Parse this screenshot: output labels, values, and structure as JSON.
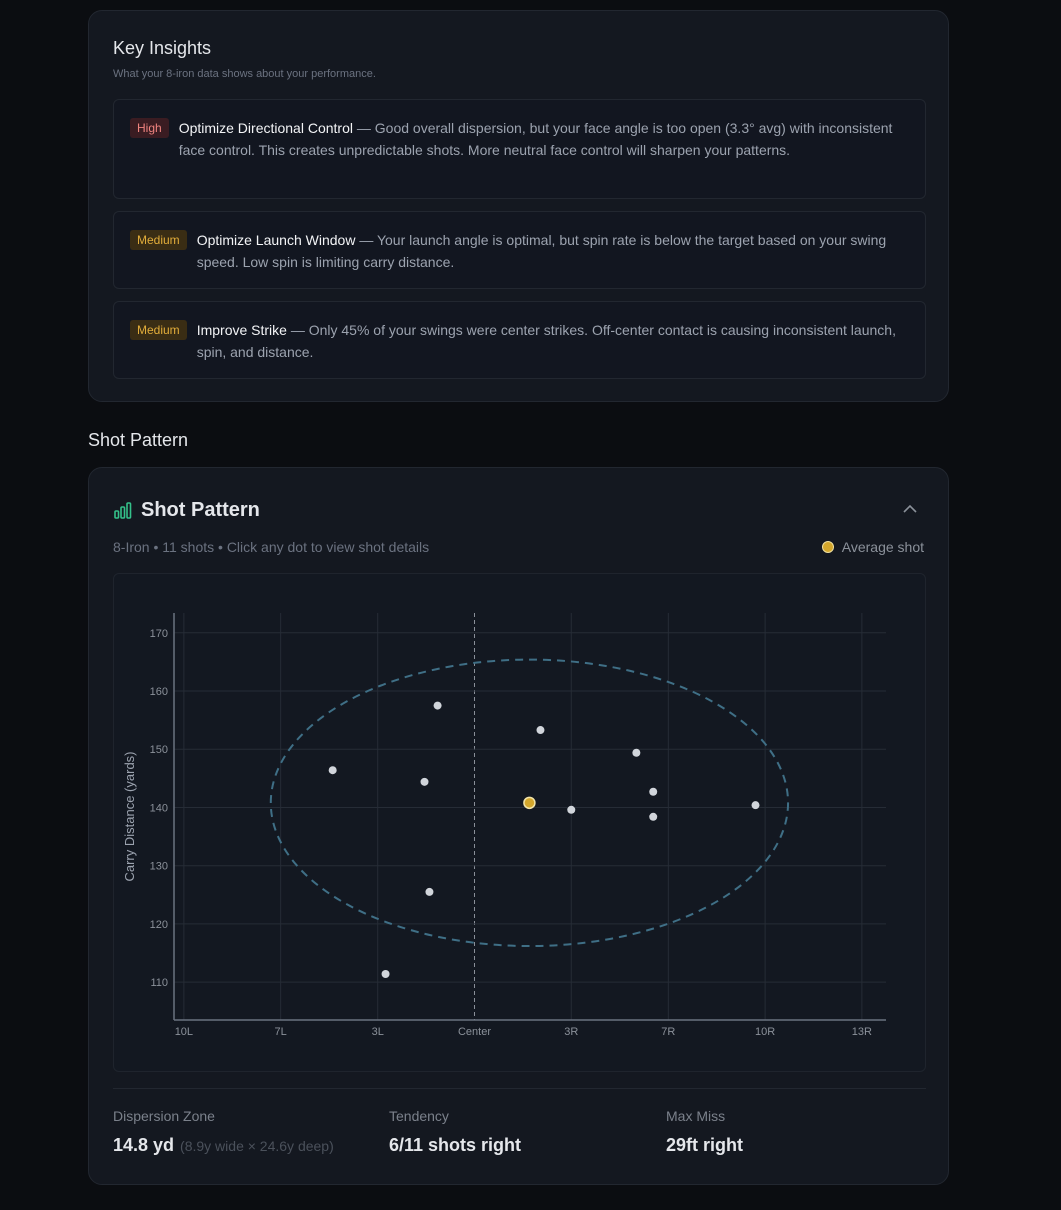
{
  "insights": {
    "title": "Key Insights",
    "subtitle": "What your 8-iron data shows about your performance.",
    "items": [
      {
        "priority": "High",
        "title": "Optimize Directional Control",
        "description": "— Good overall dispersion, but your face angle is too open (3.3° avg) with inconsistent face control. This creates unpredictable shots. More neutral face control will sharpen your patterns."
      },
      {
        "priority": "Medium",
        "title": "Optimize Launch Window",
        "description": "— Your launch angle is optimal, but spin rate is below the target based on your swing speed. Low spin is limiting carry distance."
      },
      {
        "priority": "Medium",
        "title": "Improve Strike",
        "description": "— Only 45% of your swings were center strikes. Off-center contact is causing inconsistent launch, spin, and distance."
      }
    ]
  },
  "section_heading": "Shot Pattern",
  "chart_data": {
    "type": "scatter",
    "title": "Shot Pattern",
    "subtitle": "8-Iron • 11 shots • Click any dot to view shot details",
    "y_label": "Carry Distance (yards)",
    "x": [
      -4.88,
      -1.27,
      -1.72,
      -1.55,
      -3.06,
      2.27,
      3.33,
      5.57,
      6.15,
      6.15,
      9.67
    ],
    "values": [
      146.4,
      157.5,
      144.4,
      125.5,
      111.4,
      153.3,
      139.6,
      149.4,
      142.7,
      138.4,
      140.4
    ],
    "color": "#d1d5db",
    "average": {
      "name": "Average shot",
      "x": 1.89,
      "y": 140.8,
      "color": "#d4a72c"
    },
    "ellipse": {
      "cx": 1.89,
      "cy": 140.8,
      "rx": 8.9,
      "ry": 24.6,
      "color": "#3f6f86"
    },
    "xlim": [
      -10.34,
      14.16
    ],
    "ylim": [
      103.5,
      173.4
    ],
    "xticks": [
      {
        "value": -10,
        "label": "10L"
      },
      {
        "value": -6.67,
        "label": "7L"
      },
      {
        "value": -3.33,
        "label": "3L"
      },
      {
        "value": 0,
        "label": "Center"
      },
      {
        "value": 3.33,
        "label": "3R"
      },
      {
        "value": 6.67,
        "label": "7R"
      },
      {
        "value": 10,
        "label": "10R"
      },
      {
        "value": 13.33,
        "label": "13R"
      }
    ],
    "yticks": [
      110,
      120,
      130,
      140,
      150,
      160,
      170
    ],
    "grid": true
  },
  "stats": [
    {
      "label": "Dispersion Zone",
      "value": "14.8 yd",
      "detail": "(8.9y wide × 24.6y deep)"
    },
    {
      "label": "Tendency",
      "value": "6/11 shots right"
    },
    {
      "label": "Max Miss",
      "value": "29ft right"
    }
  ]
}
